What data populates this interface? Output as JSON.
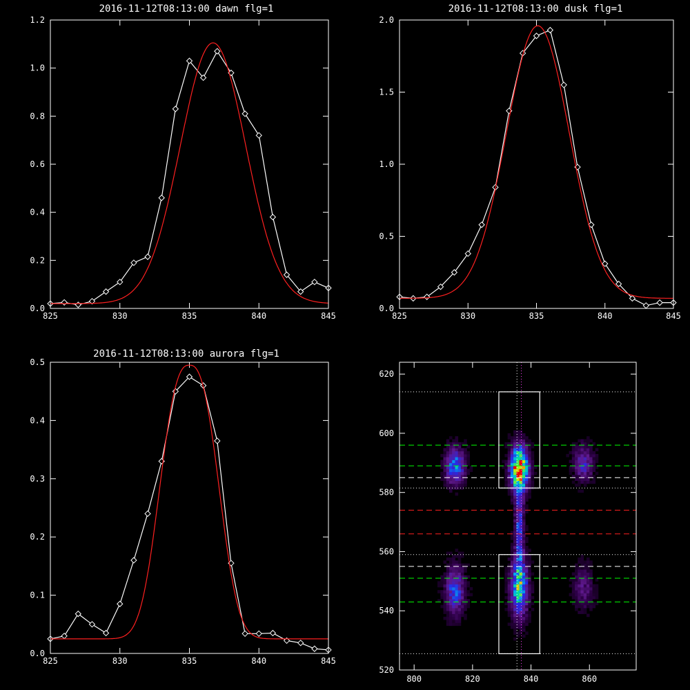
{
  "colors": {
    "background": "#000000",
    "axes": "#ffffff",
    "observed": "#ffffff",
    "fit": "#ff2020"
  },
  "chart_data": [
    {
      "type": "line",
      "title": "2016-11-12T08:13:00 dawn flg=1",
      "xlim": [
        825,
        845
      ],
      "ylim": [
        0,
        1.2
      ],
      "xticks": [
        "825",
        "830",
        "835",
        "840",
        "845"
      ],
      "yticks": [
        "0.0",
        "0.2",
        "0.4",
        "0.6",
        "0.8",
        "1.0",
        "1.2"
      ],
      "series": [
        {
          "style": "line+diamond",
          "color": "#ffffff",
          "x": [
            825,
            826,
            827,
            828,
            829,
            830,
            831,
            832,
            833,
            834,
            835,
            836,
            837,
            838,
            839,
            840,
            841,
            842,
            843,
            844,
            845
          ],
          "y": [
            0.02,
            0.025,
            0.015,
            0.03,
            0.07,
            0.11,
            0.19,
            0.215,
            0.46,
            0.83,
            1.03,
            0.96,
            1.07,
            0.98,
            0.81,
            0.72,
            0.38,
            0.14,
            0.07,
            0.11,
            0.085
          ]
        },
        {
          "style": "curve",
          "color": "#ff2020",
          "baseline": 0.02,
          "amplitude": 1.085,
          "center": 836.7,
          "sigma": 2.35,
          "power": 2
        }
      ]
    },
    {
      "type": "line",
      "title": "2016-11-12T08:13:00 dusk flg=1",
      "xlim": [
        825,
        845
      ],
      "ylim": [
        0,
        2.0
      ],
      "xticks": [
        "825",
        "830",
        "835",
        "840",
        "845"
      ],
      "yticks": [
        "0.0",
        "0.5",
        "1.0",
        "1.5",
        "2.0"
      ],
      "series": [
        {
          "style": "line+diamond",
          "color": "#ffffff",
          "x": [
            825,
            826,
            827,
            828,
            829,
            830,
            831,
            832,
            833,
            834,
            835,
            836,
            837,
            838,
            839,
            840,
            841,
            842,
            843,
            844,
            845
          ],
          "y": [
            0.08,
            0.07,
            0.08,
            0.15,
            0.25,
            0.38,
            0.58,
            0.84,
            1.37,
            1.77,
            1.89,
            1.93,
            1.55,
            0.98,
            0.58,
            0.31,
            0.17,
            0.07,
            0.02,
            0.04,
            0.04
          ]
        },
        {
          "style": "curve",
          "color": "#ff2020",
          "baseline": 0.07,
          "amplitude": 1.89,
          "center": 835.1,
          "sigma": 2.3,
          "power": 2
        }
      ]
    },
    {
      "type": "line",
      "title": "2016-11-12T08:13:00 aurora flg=1",
      "xlim": [
        825,
        845
      ],
      "ylim": [
        0,
        0.5
      ],
      "xticks": [
        "825",
        "830",
        "835",
        "840",
        "845"
      ],
      "yticks": [
        "0.0",
        "0.1",
        "0.2",
        "0.3",
        "0.4",
        "0.5"
      ],
      "series": [
        {
          "style": "line+diamond",
          "color": "#ffffff",
          "x": [
            825,
            826,
            827,
            828,
            829,
            830,
            831,
            832,
            833,
            834,
            835,
            836,
            837,
            838,
            839,
            840,
            841,
            842,
            843,
            844,
            845
          ],
          "y": [
            0.025,
            0.03,
            0.068,
            0.05,
            0.035,
            0.085,
            0.16,
            0.24,
            0.33,
            0.45,
            0.475,
            0.46,
            0.365,
            0.155,
            0.034,
            0.034,
            0.035,
            0.022,
            0.018,
            0.008,
            0.006
          ]
        },
        {
          "style": "curve",
          "color": "#ff2020",
          "baseline": 0.025,
          "amplitude": 0.47,
          "center": 835.0,
          "sigma": 2.0,
          "power": 2.6
        }
      ]
    },
    {
      "type": "heatmap",
      "title": "",
      "xlim": [
        795,
        876
      ],
      "ylim": [
        520,
        624
      ],
      "xticks": [
        "800",
        "820",
        "840",
        "860"
      ],
      "yticks": [
        "520",
        "540",
        "560",
        "580",
        "600",
        "620"
      ],
      "blobs": [
        {
          "x": 836,
          "y": 588,
          "sx": 2.0,
          "sy": 5.0,
          "amp": 1.0
        },
        {
          "x": 836,
          "y": 548,
          "sx": 2.0,
          "sy": 6.5,
          "amp": 0.62
        },
        {
          "x": 814,
          "y": 589,
          "sx": 2.2,
          "sy": 4.0,
          "amp": 0.5
        },
        {
          "x": 814,
          "y": 547,
          "sx": 2.2,
          "sy": 5.5,
          "amp": 0.4
        },
        {
          "x": 858,
          "y": 590,
          "sx": 2.2,
          "sy": 4.0,
          "amp": 0.32
        },
        {
          "x": 858,
          "y": 548,
          "sx": 2.2,
          "sy": 5.0,
          "amp": 0.2
        },
        {
          "x": 836,
          "y": 568,
          "sx": 1.0,
          "sy": 10,
          "amp": 0.38
        }
      ],
      "boxes": [
        {
          "x0": 829,
          "x1": 843,
          "y0": 581.5,
          "y1": 614,
          "color": "#ffffff"
        },
        {
          "x0": 829,
          "x1": 843,
          "y0": 525.5,
          "y1": 559,
          "color": "#ffffff"
        }
      ],
      "hlines": [
        {
          "y": 614,
          "color": "#ffffff",
          "dash": "dotted"
        },
        {
          "y": 596,
          "color": "#00ff00",
          "dash": "dashed"
        },
        {
          "y": 589,
          "color": "#00ff00",
          "dash": "dashed"
        },
        {
          "y": 585,
          "color": "#ffffff",
          "dash": "dashed"
        },
        {
          "y": 581.5,
          "color": "#ffffff",
          "dash": "dotted"
        },
        {
          "y": 574,
          "color": "#ff2020",
          "dash": "dashed"
        },
        {
          "y": 566,
          "color": "#ff2020",
          "dash": "dashed"
        },
        {
          "y": 559,
          "color": "#ffffff",
          "dash": "dotted"
        },
        {
          "y": 555,
          "color": "#ffffff",
          "dash": "dashed"
        },
        {
          "y": 551,
          "color": "#00ff00",
          "dash": "dashed"
        },
        {
          "y": 543,
          "color": "#00ff00",
          "dash": "dashed"
        },
        {
          "y": 525.5,
          "color": "#ffffff",
          "dash": "dotted"
        }
      ],
      "vlines": [
        {
          "x": 835.2,
          "color": "#ffffff",
          "dash": "dotted"
        },
        {
          "x": 836.7,
          "color": "#ff44ff",
          "dash": "dotted"
        }
      ]
    }
  ]
}
